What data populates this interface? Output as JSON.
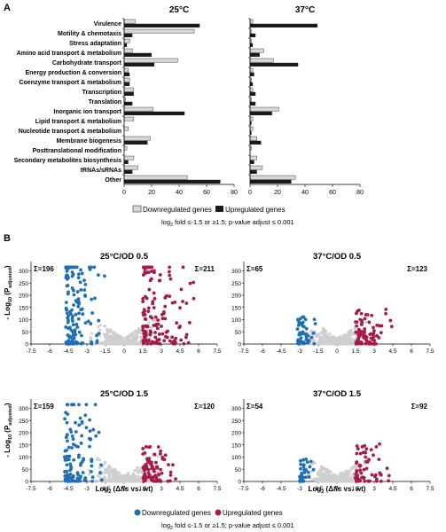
{
  "panel_labels": {
    "a": "A",
    "b": "B"
  },
  "colors": {
    "down_bar": "#d9d9d9",
    "up_bar": "#1a1a1a",
    "down_dot": "#1f6fb5",
    "up_dot": "#a81a48",
    "ns_dot": "#cfcfcf"
  },
  "chart_data": [
    {
      "type": "bar",
      "orientation": "horizontal",
      "title": "25°C",
      "categories": [
        "Virulence",
        "Motility & chemotaxis",
        "Stress adaptation",
        "Amino acid transport & metabolism",
        "Carbohydrate transport",
        "Energy production & conversion",
        "Coenzyme transport & metabolism",
        "Transcription",
        "Translation",
        "Inorganic ion transport",
        "Lipid transport & metabolism",
        "Nucleotide transport & metabolism",
        "Membrane biogenesis",
        "Posttranslational modification",
        "Secondary metabolites biosynthesis",
        "tRNAs/sRNAs",
        "Other"
      ],
      "series": [
        {
          "name": "Downregulated genes",
          "values": [
            8,
            51,
            4,
            6,
            39,
            3,
            4,
            7,
            1,
            21,
            7,
            3,
            19,
            2,
            7,
            10,
            46
          ]
        },
        {
          "name": "Upregulated genes",
          "values": [
            55,
            6,
            2,
            20,
            22,
            4,
            4,
            7,
            6,
            44,
            0,
            0,
            17,
            0,
            3,
            6,
            70
          ]
        }
      ],
      "xlim": [
        0,
        80
      ],
      "xticks": [
        0,
        20,
        40,
        60,
        80
      ]
    },
    {
      "type": "bar",
      "orientation": "horizontal",
      "title": "37°C",
      "categories": [
        "Virulence",
        "Motility & chemotaxis",
        "Stress adaptation",
        "Amino acid transport & metabolism",
        "Carbohydrate transport",
        "Energy production & conversion",
        "Coenzyme transport & metabolism",
        "Transcription",
        "Translation",
        "Inorganic ion transport",
        "Lipid transport & metabolism",
        "Nucleotide transport & metabolism",
        "Membrane biogenesis",
        "Posttranslational modification",
        "Secondary metabolites biosynthesis",
        "tRNAs/sRNAs",
        "Other"
      ],
      "series": [
        {
          "name": "Downregulated genes",
          "values": [
            2,
            1,
            1,
            10,
            17,
            2,
            1,
            2,
            1,
            21,
            2,
            2,
            5,
            1,
            5,
            9,
            33
          ]
        },
        {
          "name": "Upregulated genes",
          "values": [
            49,
            4,
            2,
            7,
            35,
            3,
            2,
            4,
            4,
            16,
            1,
            1,
            8,
            0,
            3,
            5,
            30
          ]
        }
      ],
      "xlim": [
        0,
        80
      ],
      "xticks": [
        0,
        20,
        40,
        60,
        80
      ]
    },
    {
      "type": "scatter",
      "title": "25°C/OD 0.5",
      "xlim": [
        -7.5,
        7.5
      ],
      "ylim": [
        0,
        320
      ],
      "xticks": [
        "-7.5",
        "-6",
        "-4.5",
        "-3",
        "-1.5",
        "0",
        "1.5",
        "3",
        "4.5",
        "6",
        "7.5"
      ],
      "yticks": [
        "0",
        "50",
        "100",
        "150",
        "200",
        "250",
        "300"
      ],
      "down_count": "Σ=196",
      "up_count": "Σ=211",
      "spread": {
        "down": [
          -4.7,
          -1.5,
          1
        ],
        "up": [
          1.5,
          6.0,
          1
        ],
        "ns_width": 1.5
      }
    },
    {
      "type": "scatter",
      "title": "37°C/OD 0.5",
      "xlim": [
        -7.5,
        7.5
      ],
      "ylim": [
        0,
        320
      ],
      "xticks": [
        "-7.5",
        "-6",
        "-4.5",
        "-3",
        "-1.5",
        "0",
        "1.5",
        "3",
        "4.5",
        "6",
        "7.5"
      ],
      "yticks": [
        "0",
        "50",
        "100",
        "150",
        "200",
        "250",
        "300"
      ],
      "down_count": "Σ=65",
      "up_count": "Σ=123",
      "spread": {
        "down": [
          -3.2,
          -1.5,
          0.35
        ],
        "up": [
          1.5,
          4.8,
          0.45
        ],
        "ns_width": 1.2
      }
    },
    {
      "type": "scatter",
      "title": "25°C/OD 1.5",
      "xlim": [
        -7.5,
        7.5
      ],
      "ylim": [
        0,
        320
      ],
      "xticks": [
        "-7.5",
        "-6",
        "-4.5",
        "-3",
        "-1.5",
        "0",
        "1.5",
        "3",
        "4.5",
        "6",
        "7.5"
      ],
      "yticks": [
        "0",
        "50",
        "100",
        "150",
        "200",
        "250",
        "300"
      ],
      "down_count": "Σ=159",
      "up_count": "Σ=120",
      "spread": {
        "down": [
          -4.8,
          -1.5,
          0.9
        ],
        "up": [
          1.5,
          4.6,
          0.45
        ],
        "ns_width": 1.5
      }
    },
    {
      "type": "scatter",
      "title": "37°C/OD 1.5",
      "xlim": [
        -7.5,
        7.5
      ],
      "ylim": [
        0,
        320
      ],
      "xticks": [
        "-7.5",
        "-6",
        "-4.5",
        "-3",
        "-1.5",
        "0",
        "1.5",
        "3",
        "4.5",
        "6",
        "7.5"
      ],
      "yticks": [
        "0",
        "50",
        "100",
        "150",
        "200",
        "250",
        "300"
      ],
      "down_count": "Σ=54",
      "up_count": "Σ=92",
      "spread": {
        "down": [
          -3.0,
          -1.5,
          0.3
        ],
        "up": [
          1.5,
          4.9,
          0.5
        ],
        "ns_width": 1.1
      }
    }
  ],
  "legend_a": {
    "down": "Downregulated genes",
    "up": "Upregulated genes"
  },
  "legend_b": {
    "down": "Downregulated genes",
    "up": "Upregulated genes"
  },
  "criteria_a": {
    "prefix": "log",
    "sub": "2",
    "rest": " fold ≤-1.5 or ≥1.5; p-value adjust ≤ 0.001"
  },
  "criteria_b": {
    "prefix": "log",
    "sub": "2",
    "rest": " fold ≤-1.5 or ≥1.5; p-value adjust ≤ 0.001"
  },
  "y_axis_label": {
    "lead": "- Log",
    "sub1": "10",
    "mid": " (P",
    "sub2": "adjusted",
    "tail": ")"
  },
  "x_axis_label": {
    "lead": "Log",
    "sub": "2",
    "mid": " (Δ",
    "italic": "fis",
    "tail": " vs. wt)"
  }
}
